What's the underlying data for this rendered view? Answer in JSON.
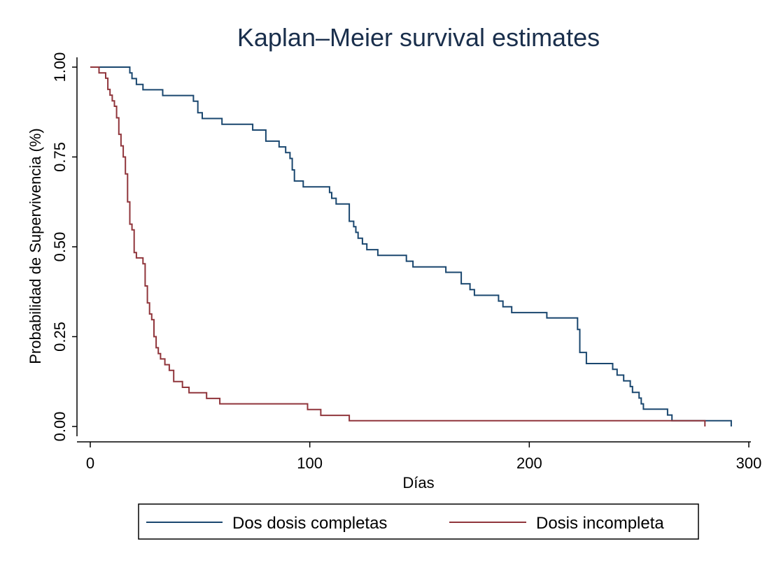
{
  "chart_data": {
    "type": "line",
    "title": "Kaplan–Meier survival estimates",
    "xlabel": "Días",
    "ylabel": "Probabilidad de Supervivencia (%)",
    "xlim": [
      0,
      300
    ],
    "ylim": [
      0,
      1
    ],
    "x_ticks": [
      0,
      100,
      200,
      300
    ],
    "x_tick_labels": [
      "0",
      "100",
      "200",
      "300"
    ],
    "y_ticks": [
      0,
      0.25,
      0.5,
      0.75,
      1
    ],
    "y_tick_labels": [
      "0.00",
      "0.25",
      "0.50",
      "0.75",
      "1.00"
    ],
    "grid": false,
    "legend_position": "bottom",
    "series": [
      {
        "name": "Dos dosis completas",
        "color": "#1a476f",
        "step": true,
        "x": [
          0,
          18,
          19,
          21,
          22,
          24,
          28,
          33,
          47,
          49,
          51,
          60,
          74,
          80,
          86,
          89,
          91,
          92,
          93,
          96,
          97,
          100,
          109,
          110,
          112,
          118,
          120,
          121,
          122,
          124,
          126,
          131,
          133,
          144,
          147,
          162,
          169,
          173,
          175,
          186,
          188,
          192,
          208,
          209,
          222,
          223,
          226,
          238,
          240,
          243,
          245,
          246,
          247,
          249,
          250,
          251,
          252,
          253,
          254,
          263,
          265,
          292
        ],
        "y": [
          1.0,
          0.984,
          0.968,
          0.952,
          0.952,
          0.937,
          0.937,
          0.921,
          0.905,
          0.873,
          0.857,
          0.841,
          0.825,
          0.794,
          0.778,
          0.762,
          0.746,
          0.714,
          0.683,
          0.683,
          0.667,
          0.667,
          0.651,
          0.635,
          0.619,
          0.571,
          0.556,
          0.54,
          0.524,
          0.508,
          0.492,
          0.476,
          0.476,
          0.46,
          0.444,
          0.429,
          0.397,
          0.381,
          0.365,
          0.349,
          0.333,
          0.317,
          0.302,
          0.302,
          0.27,
          0.206,
          0.175,
          0.159,
          0.143,
          0.127,
          0.127,
          0.111,
          0.095,
          0.095,
          0.079,
          0.063,
          0.048,
          0.048,
          0.048,
          0.032,
          0.016,
          0.0
        ]
      },
      {
        "name": "Dosis incompleta",
        "color": "#90353b",
        "step": true,
        "x": [
          0,
          4,
          7,
          8,
          9,
          10,
          11,
          12,
          13,
          14,
          15,
          16,
          17,
          18,
          19,
          20,
          21,
          24,
          25,
          26,
          27,
          28,
          29,
          30,
          31,
          32,
          34,
          36,
          38,
          42,
          45,
          53,
          59,
          99,
          105,
          118,
          280
        ],
        "y": [
          1.0,
          0.984,
          0.969,
          0.938,
          0.922,
          0.906,
          0.891,
          0.859,
          0.813,
          0.781,
          0.75,
          0.703,
          0.625,
          0.563,
          0.547,
          0.484,
          0.469,
          0.453,
          0.391,
          0.344,
          0.313,
          0.297,
          0.25,
          0.219,
          0.203,
          0.188,
          0.172,
          0.156,
          0.125,
          0.109,
          0.094,
          0.078,
          0.063,
          0.047,
          0.031,
          0.016,
          0.0
        ]
      }
    ]
  }
}
